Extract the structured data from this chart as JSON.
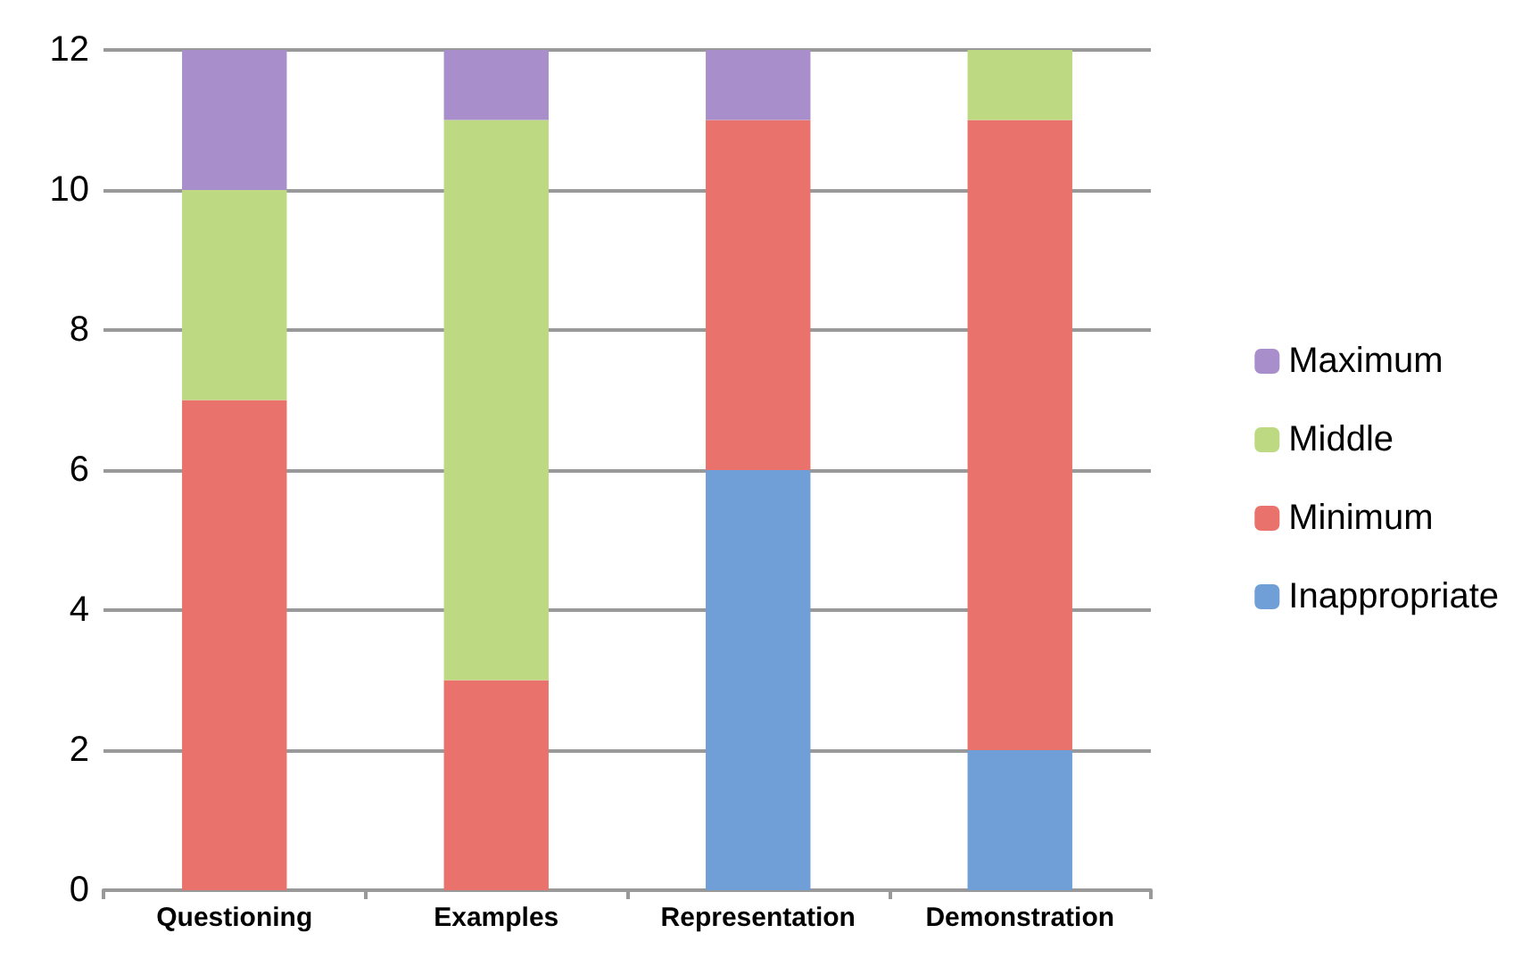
{
  "chart_data": {
    "type": "bar",
    "stacked": true,
    "categories": [
      "Questioning",
      "Examples",
      "Representation",
      "Demonstration"
    ],
    "series": [
      {
        "name": "Inappropriate",
        "color": "#6f9fd6",
        "values": [
          0,
          0,
          6,
          2
        ]
      },
      {
        "name": "Minimum",
        "color": "#e9736c",
        "values": [
          7,
          3,
          5,
          9
        ]
      },
      {
        "name": "Middle",
        "color": "#bdd982",
        "values": [
          3,
          8,
          0,
          1
        ]
      },
      {
        "name": "Maximum",
        "color": "#a88fcb",
        "values": [
          2,
          1,
          1,
          0
        ]
      }
    ],
    "ylim": [
      0,
      12
    ],
    "yticks": [
      0,
      2,
      4,
      6,
      8,
      10,
      12
    ],
    "grid": "y",
    "legend": "right"
  }
}
